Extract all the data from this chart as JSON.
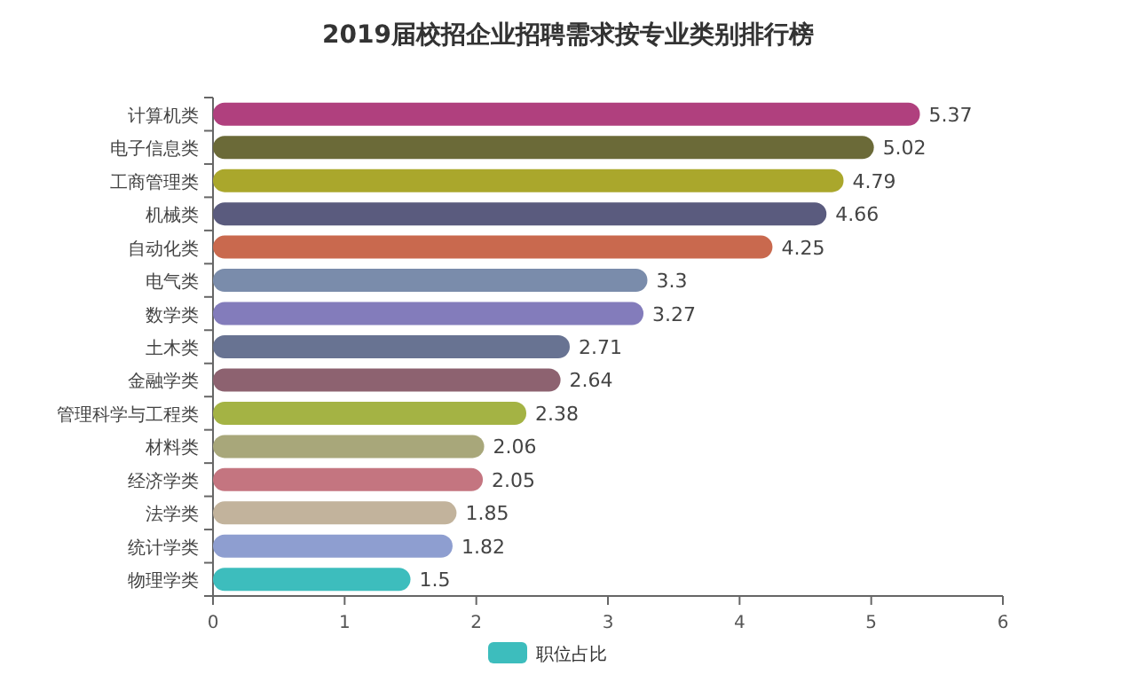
{
  "chart_data": {
    "type": "bar",
    "orientation": "horizontal",
    "title": "2019届校招企业招聘需求按专业类别排行榜",
    "categories": [
      "计算机类",
      "电子信息类",
      "工商管理类",
      "机械类",
      "自动化类",
      "电气类",
      "数学类",
      "土木类",
      "金融学类",
      "管理科学与工程类",
      "材料类",
      "经济学类",
      "法学类",
      "统计学类",
      "物理学类"
    ],
    "series": [
      {
        "name": "职位占比",
        "values": [
          5.37,
          5.02,
          4.79,
          4.66,
          4.25,
          3.3,
          3.27,
          2.71,
          2.64,
          2.38,
          2.06,
          2.05,
          1.85,
          1.82,
          1.5
        ],
        "colors": [
          "#b0407e",
          "#6b6a38",
          "#aaa72c",
          "#5a5b7e",
          "#c9694e",
          "#7a8cab",
          "#837cbb",
          "#687392",
          "#8d6270",
          "#a4b344",
          "#a8a77a",
          "#c47580",
          "#c2b39c",
          "#8e9ed0",
          "#3dbdbd"
        ]
      }
    ],
    "xlim": [
      0,
      6
    ],
    "xticks": [
      0,
      1,
      2,
      3,
      4,
      5,
      6
    ],
    "data_labels": true,
    "grid": false,
    "legend": "bottom"
  }
}
